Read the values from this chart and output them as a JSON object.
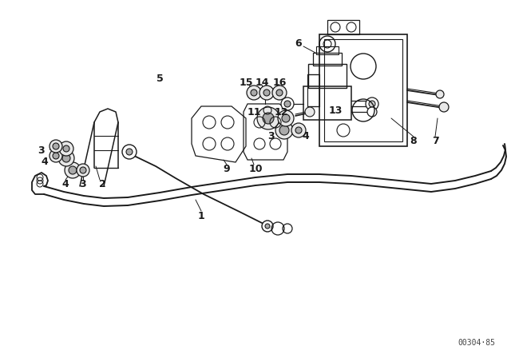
{
  "bg_color": "#ffffff",
  "line_color": "#1a1a1a",
  "watermark": "00304·85",
  "font_size": 9,
  "font_size_wm": 7
}
